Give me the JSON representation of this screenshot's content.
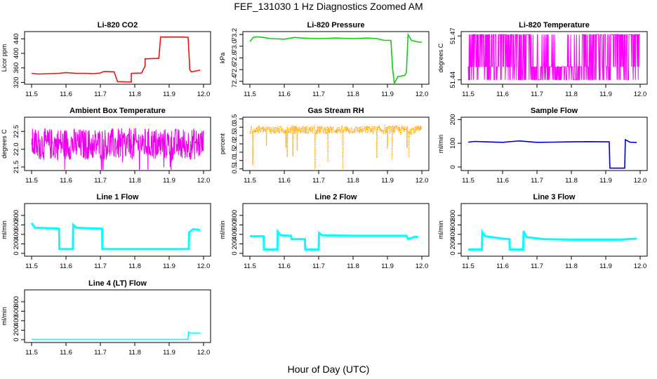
{
  "page": {
    "title": "FEF_131030 1 Hz Diagnostics Zoomed AM",
    "xlabel": "Hour of Day (UTC)"
  },
  "chart_data": [
    {
      "type": "line",
      "title": "Li-820 CO2",
      "ylabel": "Licor ppm",
      "color": "#ee1111",
      "xlim": [
        11.5,
        12.0
      ],
      "xticks": [
        "11.5",
        "11.6",
        "11.7",
        "11.8",
        "11.9",
        "12.0"
      ],
      "ylim": [
        315,
        460
      ],
      "yticks": [
        {
          "v": 320,
          "t": "320"
        },
        {
          "v": 360,
          "t": "360"
        },
        {
          "v": 400,
          "t": "400"
        },
        {
          "v": 440,
          "t": "440"
        }
      ],
      "series": [
        {
          "x": [
            11.5,
            11.52,
            11.55,
            11.58,
            11.6,
            11.63,
            11.66,
            11.68,
            11.7,
            11.71,
            11.72,
            11.74,
            11.75,
            11.76,
            11.79,
            11.79,
            11.82,
            11.83,
            11.83,
            11.86,
            11.87,
            11.875,
            11.9,
            11.94,
            11.955,
            11.96,
            11.965,
            11.98,
            11.99
          ],
          "y": [
            345,
            343,
            344,
            345,
            347,
            345,
            345,
            344,
            346,
            350,
            350,
            349,
            322,
            322,
            321,
            345,
            346,
            365,
            385,
            386,
            386,
            445,
            445,
            445,
            444,
            355,
            349,
            352,
            354
          ]
        }
      ]
    },
    {
      "type": "line",
      "title": "Li-820 Pressure",
      "ylabel": "kPa",
      "color": "#11cc11",
      "xlim": [
        11.5,
        12.0
      ],
      "xticks": [
        "11.5",
        "11.6",
        "11.7",
        "11.8",
        "11.9",
        "12.0"
      ],
      "ylim": [
        72.35,
        73.25
      ],
      "yticks": [
        {
          "v": 72.4,
          "t": "72.4"
        },
        {
          "v": 72.6,
          "t": "72.6"
        },
        {
          "v": 72.8,
          "t": "72.8"
        },
        {
          "v": 73.0,
          "t": "73.0"
        },
        {
          "v": 73.2,
          "t": "73.2"
        }
      ],
      "series": [
        {
          "x": [
            11.5,
            11.51,
            11.52,
            11.54,
            11.56,
            11.6,
            11.63,
            11.65,
            11.7,
            11.75,
            11.8,
            11.84,
            11.87,
            11.89,
            11.91,
            11.915,
            11.92,
            11.93,
            11.95,
            11.955,
            11.96,
            11.97,
            11.99,
            12.0
          ],
          "y": [
            73.08,
            73.15,
            73.16,
            73.15,
            73.13,
            73.12,
            73.15,
            73.14,
            73.13,
            73.14,
            73.13,
            73.14,
            73.13,
            73.1,
            73.1,
            72.62,
            72.36,
            72.48,
            72.5,
            72.55,
            73.2,
            73.1,
            73.07,
            73.07
          ]
        }
      ]
    },
    {
      "type": "line",
      "title": "Li-820 Temperature",
      "ylabel": "degrees C",
      "color": "#ff00ff",
      "xlim": [
        11.5,
        12.0
      ],
      "xticks": [
        "11.5",
        "11.6",
        "11.7",
        "11.8",
        "11.9",
        "12.0"
      ],
      "ylim": [
        51.437,
        51.473
      ],
      "yticks": [
        {
          "v": 51.44,
          "t": "51.44"
        },
        {
          "v": 51.47,
          "t": "51.47"
        }
      ],
      "series": [
        {
          "x": [
            11.5,
            11.52,
            11.55,
            11.58,
            11.6,
            11.62,
            11.65,
            11.7,
            11.75,
            11.8,
            11.83,
            11.86,
            11.9,
            11.93,
            11.96,
            11.99
          ],
          "y": [
            51.45,
            51.45,
            51.45,
            51.45,
            51.45,
            51.45,
            51.45,
            51.45,
            51.45,
            51.45,
            51.45,
            51.45,
            51.45,
            51.45,
            51.45,
            51.45
          ]
        }
      ]
    },
    {
      "type": "line",
      "title": "Ambient Box Temperature",
      "ylabel": "degrees C",
      "color": "#ee00ee",
      "xlim": [
        11.5,
        12.0
      ],
      "xticks": [
        "11.5",
        "11.6",
        "11.7",
        "11.8",
        "11.9",
        "12.0"
      ],
      "ylim": [
        21.4,
        22.9
      ],
      "yticks": [
        {
          "v": 21.5,
          "t": "21.5"
        },
        {
          "v": 22.0,
          "t": "22.0"
        },
        {
          "v": 22.5,
          "t": "22.5"
        }
      ],
      "series": [
        {
          "x": [
            11.5,
            11.55,
            11.6,
            11.65,
            11.7,
            11.75,
            11.8,
            11.85,
            11.9,
            11.95,
            11.99
          ],
          "y": [
            22.15,
            22.14,
            22.15,
            22.13,
            22.15,
            22.14,
            22.15,
            22.15,
            22.14,
            22.15,
            22.15
          ]
        }
      ]
    },
    {
      "type": "scatter",
      "title": "Gas Stream RH",
      "ylabel": "percent",
      "color": "#ffa500",
      "xlim": [
        11.5,
        12.0
      ],
      "xticks": [
        "11.5",
        "11.6",
        "11.7",
        "11.8",
        "11.9",
        "12.0"
      ],
      "ylim": [
        0.4,
        3.6
      ],
      "yticks": [
        {
          "v": 0.5,
          "t": "0.5"
        },
        {
          "v": 1.0,
          "t": "1.0"
        },
        {
          "v": 1.5,
          "t": "1.5"
        },
        {
          "v": 2.0,
          "t": "2.0"
        },
        {
          "v": 2.5,
          "t": "2.5"
        },
        {
          "v": 3.0,
          "t": "3.0"
        },
        {
          "v": 3.5,
          "t": "3.5"
        }
      ],
      "series": [
        {
          "x": [
            11.5,
            11.55,
            11.6,
            11.65,
            11.7,
            11.75,
            11.8,
            11.85,
            11.9,
            11.95,
            11.99
          ],
          "y": [
            2.85,
            2.85,
            2.84,
            2.85,
            2.84,
            2.85,
            2.85,
            2.84,
            2.85,
            2.85,
            2.85
          ]
        }
      ]
    },
    {
      "type": "line",
      "title": "Sample Flow",
      "ylabel": "ml/min",
      "color": "#0000cc",
      "xlim": [
        11.5,
        12.0
      ],
      "xticks": [
        "11.5",
        "11.6",
        "11.7",
        "11.8",
        "11.9",
        "12.0"
      ],
      "ylim": [
        -15,
        210
      ],
      "yticks": [
        {
          "v": 0,
          "t": "0"
        },
        {
          "v": 100,
          "t": "100"
        },
        {
          "v": 200,
          "t": "200"
        }
      ],
      "series": [
        {
          "x": [
            11.5,
            11.52,
            11.55,
            11.6,
            11.63,
            11.65,
            11.68,
            11.7,
            11.75,
            11.8,
            11.85,
            11.9,
            11.91,
            11.912,
            11.95,
            11.955,
            11.957,
            11.97,
            11.99
          ],
          "y": [
            105,
            108,
            106,
            104,
            108,
            110,
            106,
            104,
            105,
            106,
            107,
            106,
            106,
            -5,
            -5,
            -5,
            115,
            105,
            103
          ]
        }
      ]
    },
    {
      "type": "line",
      "title": "Line 1 Flow",
      "ylabel": "ml/min",
      "color": "#00ffff",
      "xlim": [
        11.5,
        12.0
      ],
      "xticks": [
        "11.5",
        "11.6",
        "11.7",
        "11.8",
        "11.9",
        "12.0"
      ],
      "ylim": [
        -60,
        1050
      ],
      "yticks": [
        {
          "v": 0,
          "t": "0"
        },
        {
          "v": 200,
          "t": "200"
        },
        {
          "v": 400,
          "t": "400"
        },
        {
          "v": 600,
          "t": "600"
        },
        {
          "v": 800,
          "t": "800"
        }
      ],
      "series": [
        {
          "x": [
            11.5,
            11.51,
            11.55,
            11.58,
            11.581,
            11.62,
            11.621,
            11.63,
            11.66,
            11.705,
            11.706,
            11.8,
            11.9,
            11.957,
            11.958,
            11.97,
            11.99
          ],
          "y": [
            640,
            540,
            530,
            520,
            90,
            90,
            600,
            540,
            530,
            520,
            90,
            90,
            90,
            90,
            440,
            510,
            490
          ]
        }
      ]
    },
    {
      "type": "line",
      "title": "Line 2 Flow",
      "ylabel": "ml/min",
      "color": "#00ffff",
      "xlim": [
        11.5,
        12.0
      ],
      "xticks": [
        "11.5",
        "11.6",
        "11.7",
        "11.8",
        "11.9",
        "12.0"
      ],
      "ylim": [
        -60,
        1050
      ],
      "yticks": [
        {
          "v": 0,
          "t": "0"
        },
        {
          "v": 200,
          "t": "200"
        },
        {
          "v": 400,
          "t": "400"
        },
        {
          "v": 600,
          "t": "600"
        },
        {
          "v": 800,
          "t": "800"
        }
      ],
      "series": [
        {
          "x": [
            11.5,
            11.54,
            11.541,
            11.58,
            11.581,
            11.59,
            11.62,
            11.621,
            11.66,
            11.661,
            11.7,
            11.701,
            11.71,
            11.8,
            11.9,
            11.955,
            11.96,
            11.98,
            11.99
          ],
          "y": [
            360,
            360,
            80,
            80,
            460,
            380,
            370,
            300,
            300,
            80,
            80,
            430,
            380,
            370,
            370,
            370,
            300,
            350,
            340
          ]
        }
      ]
    },
    {
      "type": "line",
      "title": "Line 3 Flow",
      "ylabel": "ml/min",
      "color": "#00ffff",
      "xlim": [
        11.5,
        12.0
      ],
      "xticks": [
        "11.5",
        "11.6",
        "11.7",
        "11.8",
        "11.9",
        "12.0"
      ],
      "ylim": [
        -60,
        1050
      ],
      "yticks": [
        {
          "v": 0,
          "t": "0"
        },
        {
          "v": 200,
          "t": "200"
        },
        {
          "v": 400,
          "t": "400"
        },
        {
          "v": 600,
          "t": "600"
        },
        {
          "v": 800,
          "t": "800"
        }
      ],
      "series": [
        {
          "x": [
            11.5,
            11.54,
            11.541,
            11.55,
            11.6,
            11.62,
            11.621,
            11.66,
            11.661,
            11.67,
            11.72,
            11.8,
            11.9,
            11.95,
            11.96,
            11.99
          ],
          "y": [
            80,
            80,
            450,
            360,
            310,
            300,
            80,
            80,
            470,
            340,
            300,
            290,
            290,
            290,
            300,
            310
          ]
        }
      ]
    },
    {
      "type": "line",
      "title": "Line 4 (LT) Flow",
      "ylabel": "ml/min",
      "color": "#00ffff",
      "xlim": [
        11.5,
        12.0
      ],
      "xticks": [
        "11.5",
        "11.6",
        "11.7",
        "11.8",
        "11.9",
        "12.0"
      ],
      "ylim": [
        -60,
        1050
      ],
      "yticks": [
        {
          "v": 0,
          "t": "0"
        },
        {
          "v": 200,
          "t": "200"
        },
        {
          "v": 400,
          "t": "400"
        },
        {
          "v": 600,
          "t": "600"
        },
        {
          "v": 800,
          "t": "800"
        }
      ],
      "series": [
        {
          "x": [
            11.5,
            11.6,
            11.7,
            11.8,
            11.9,
            11.955,
            11.956,
            11.96,
            11.99
          ],
          "y": [
            5,
            5,
            5,
            5,
            5,
            5,
            160,
            140,
            140
          ]
        }
      ]
    }
  ]
}
